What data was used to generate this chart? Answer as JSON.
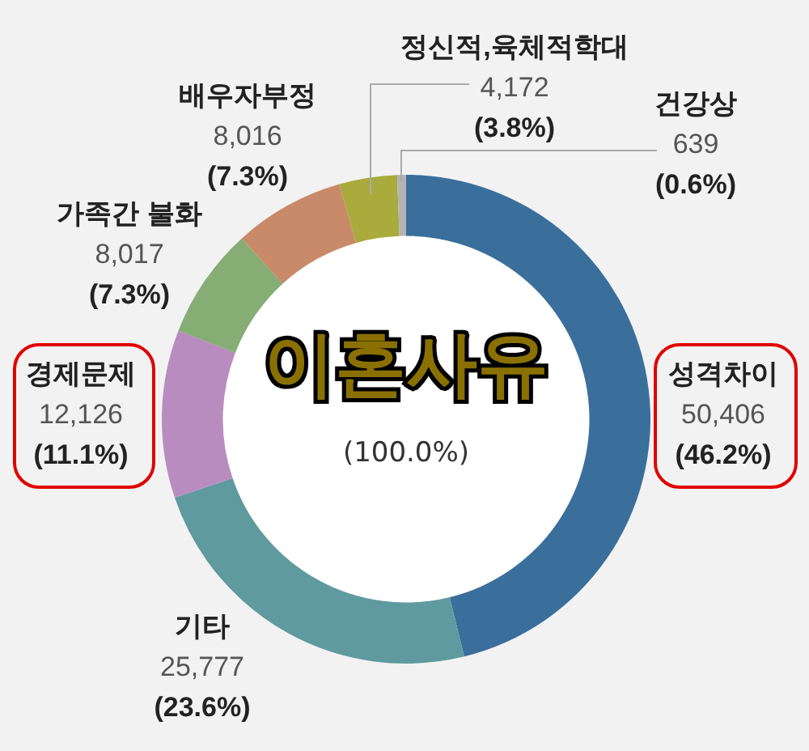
{
  "chart_data": {
    "type": "donut",
    "title": "이혼사유",
    "categories": [
      "성격차이",
      "기타",
      "경제문제",
      "가족간 불화",
      "배우자부정",
      "정신적,육체적학대",
      "건강상"
    ],
    "values": [
      50406,
      25777,
      12126,
      8017,
      8016,
      4172,
      639
    ],
    "colors": [
      "#3a6f9c",
      "#5f9a9e",
      "#b98cbf",
      "#86ad74",
      "#c98a6a",
      "#a9ab3c",
      "#b4b4b4"
    ],
    "value_labels": [
      "50,406\n(46.2%)",
      "25,777\n(23.6%)",
      "12,126\n(11.1%)",
      "8,017\n(7.3%)",
      "8,016\n(7.3%)",
      "4,172\n(3.8%)",
      "639\n(0.6%)"
    ],
    "annotations": [
      "(100.0%)"
    ]
  }
}
